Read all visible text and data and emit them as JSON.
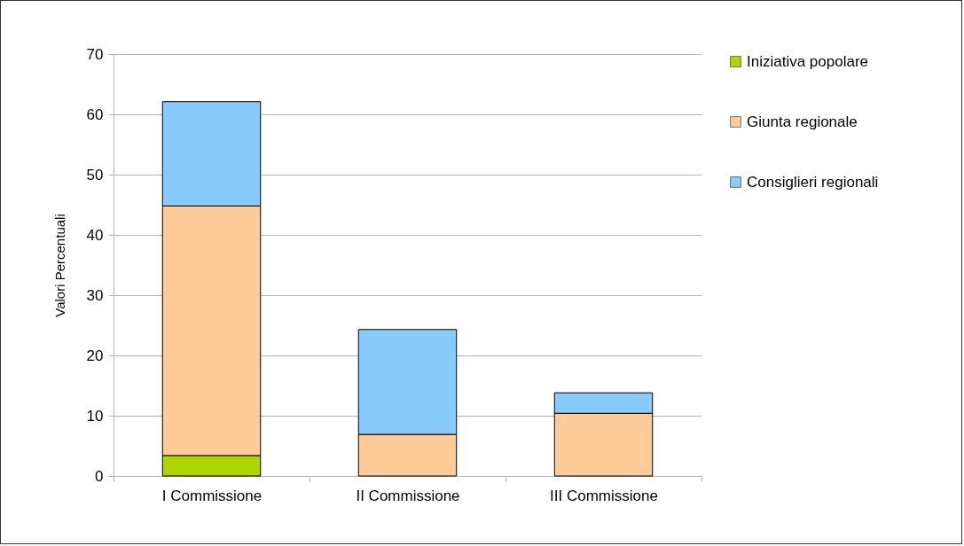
{
  "chart_data": {
    "type": "bar",
    "stacked": true,
    "ylabel": "Valori Percentuali",
    "categories": [
      "I Commissione",
      "II Commissione",
      "III Commissione"
    ],
    "series": [
      {
        "name": "Iniziativa popolare",
        "color": "#b0d400",
        "values": [
          3.4,
          null,
          null
        ]
      },
      {
        "name": "Giunta regionale",
        "color": "#ffcc99",
        "values": [
          41.4,
          6.9,
          10.4
        ]
      },
      {
        "name": "Consiglieri regionali",
        "color": "#87cbfc",
        "values": [
          17.3,
          17.4,
          3.4
        ]
      }
    ],
    "ylim": [
      0,
      70
    ],
    "yticks": [
      0,
      10,
      20,
      30,
      40,
      50,
      60,
      70
    ],
    "grid": "y",
    "legend": "right"
  }
}
